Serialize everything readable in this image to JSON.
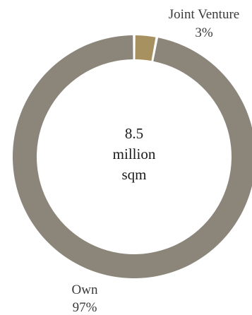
{
  "chart_data": {
    "type": "pie",
    "style": "donut",
    "categories": [
      "Joint Venture",
      "Own"
    ],
    "values": [
      3,
      97
    ],
    "value_labels": [
      "3%",
      "97%"
    ],
    "colors": [
      "#a89160",
      "#8b857a"
    ],
    "center_label": [
      "8.5",
      "million",
      "sqm"
    ]
  }
}
